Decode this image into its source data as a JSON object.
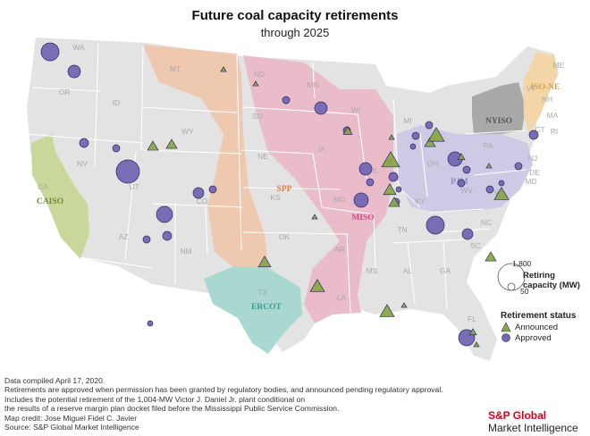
{
  "title": "Future coal capacity retirements",
  "subtitle": "through 2025",
  "colors": {
    "land": "#e3e3e3",
    "state_border": "#ffffff",
    "announced": "#8ba64a",
    "approved": "#7466b4",
    "marker_stroke": "#2b2b5a",
    "CAISO": "#c9d79a",
    "SPP": "#f0c3a6",
    "MISO": "#eab7c6",
    "ERCOT": "#a8d8d0",
    "PJM": "#ccc8e6",
    "NYISO": "#a9a9a9",
    "ISO-NE": "#f2d6a7"
  },
  "state_labels": [
    "WA",
    "OR",
    "CA",
    "NV",
    "ID",
    "MT",
    "WY",
    "UT",
    "CO",
    "AZ",
    "NM",
    "ND",
    "SD",
    "NE",
    "KS",
    "OK",
    "TX",
    "MN",
    "IA",
    "MO",
    "AR",
    "LA",
    "WI",
    "IL",
    "MI",
    "IN",
    "OH",
    "KY",
    "TN",
    "MS",
    "AL",
    "GA",
    "FL",
    "SC",
    "NC",
    "VA",
    "WV",
    "PA",
    "NY",
    "ME",
    "VT",
    "NH",
    "MA",
    "CT",
    "RI",
    "NJ",
    "DE",
    "MD"
  ],
  "rto_labels": [
    "CAISO",
    "SPP",
    "MISO",
    "ERCOT",
    "PJM",
    "NYISO",
    "ISO-NE"
  ],
  "legend": {
    "status_title": "Retirement status",
    "announced": "Announced",
    "approved": "Approved",
    "size_title_line1": "Retiring",
    "size_title_line2": "capacity (MW)",
    "size_max": "1,800",
    "size_min": "50"
  },
  "notes": [
    "Data compiled April 17, 2020.",
    "Retirements are approved when permission has been granted by regulatory bodies, and announced pending regulatory approval.",
    "Includes the potential retirement of the 1,004-MW Victor J. Daniel Jr. plant conditional on",
    "the results of a reserve margin plan docket filed before the Mississippi Public Service Commission.",
    "Map credit: Jose Miguel Fidel C. Javier",
    "Source: S&P Global Market Intelligence"
  ],
  "brand": {
    "line1": "S&P Global",
    "line2": "Market Intelligence"
  }
}
